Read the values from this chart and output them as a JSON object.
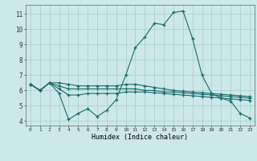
{
  "xlabel": "Humidex (Indice chaleur)",
  "bg_color": "#cce8e8",
  "line_color": "#1a6b6b",
  "grid_color": "#aacccc",
  "ylim": [
    3.7,
    11.6
  ],
  "xlim": [
    -0.5,
    23.5
  ],
  "yticks": [
    4,
    5,
    6,
    7,
    8,
    9,
    10,
    11
  ],
  "xticks": [
    0,
    1,
    2,
    3,
    4,
    5,
    6,
    7,
    8,
    9,
    10,
    11,
    12,
    13,
    14,
    15,
    16,
    17,
    18,
    19,
    20,
    21,
    22,
    23
  ],
  "line1": [
    6.4,
    6.0,
    6.5,
    5.8,
    4.1,
    4.5,
    4.8,
    4.3,
    4.7,
    5.4,
    7.0,
    8.8,
    9.5,
    10.4,
    10.3,
    11.1,
    11.2,
    9.4,
    7.0,
    5.8,
    5.5,
    5.3,
    4.5,
    4.2
  ],
  "line2": [
    6.4,
    6.0,
    6.5,
    6.5,
    6.4,
    6.3,
    6.3,
    6.3,
    6.3,
    6.3,
    6.4,
    6.4,
    6.3,
    6.2,
    6.1,
    6.0,
    5.95,
    5.9,
    5.85,
    5.8,
    5.75,
    5.7,
    5.65,
    5.6
  ],
  "line3": [
    6.4,
    6.0,
    6.5,
    6.3,
    6.1,
    6.1,
    6.1,
    6.1,
    6.1,
    6.1,
    6.1,
    6.1,
    6.0,
    6.0,
    5.9,
    5.9,
    5.85,
    5.8,
    5.75,
    5.7,
    5.65,
    5.6,
    5.55,
    5.5
  ],
  "line4": [
    6.4,
    6.0,
    6.5,
    6.1,
    5.7,
    5.7,
    5.8,
    5.8,
    5.8,
    5.8,
    5.9,
    5.9,
    5.9,
    5.85,
    5.8,
    5.75,
    5.7,
    5.65,
    5.6,
    5.55,
    5.5,
    5.45,
    5.4,
    5.35
  ]
}
